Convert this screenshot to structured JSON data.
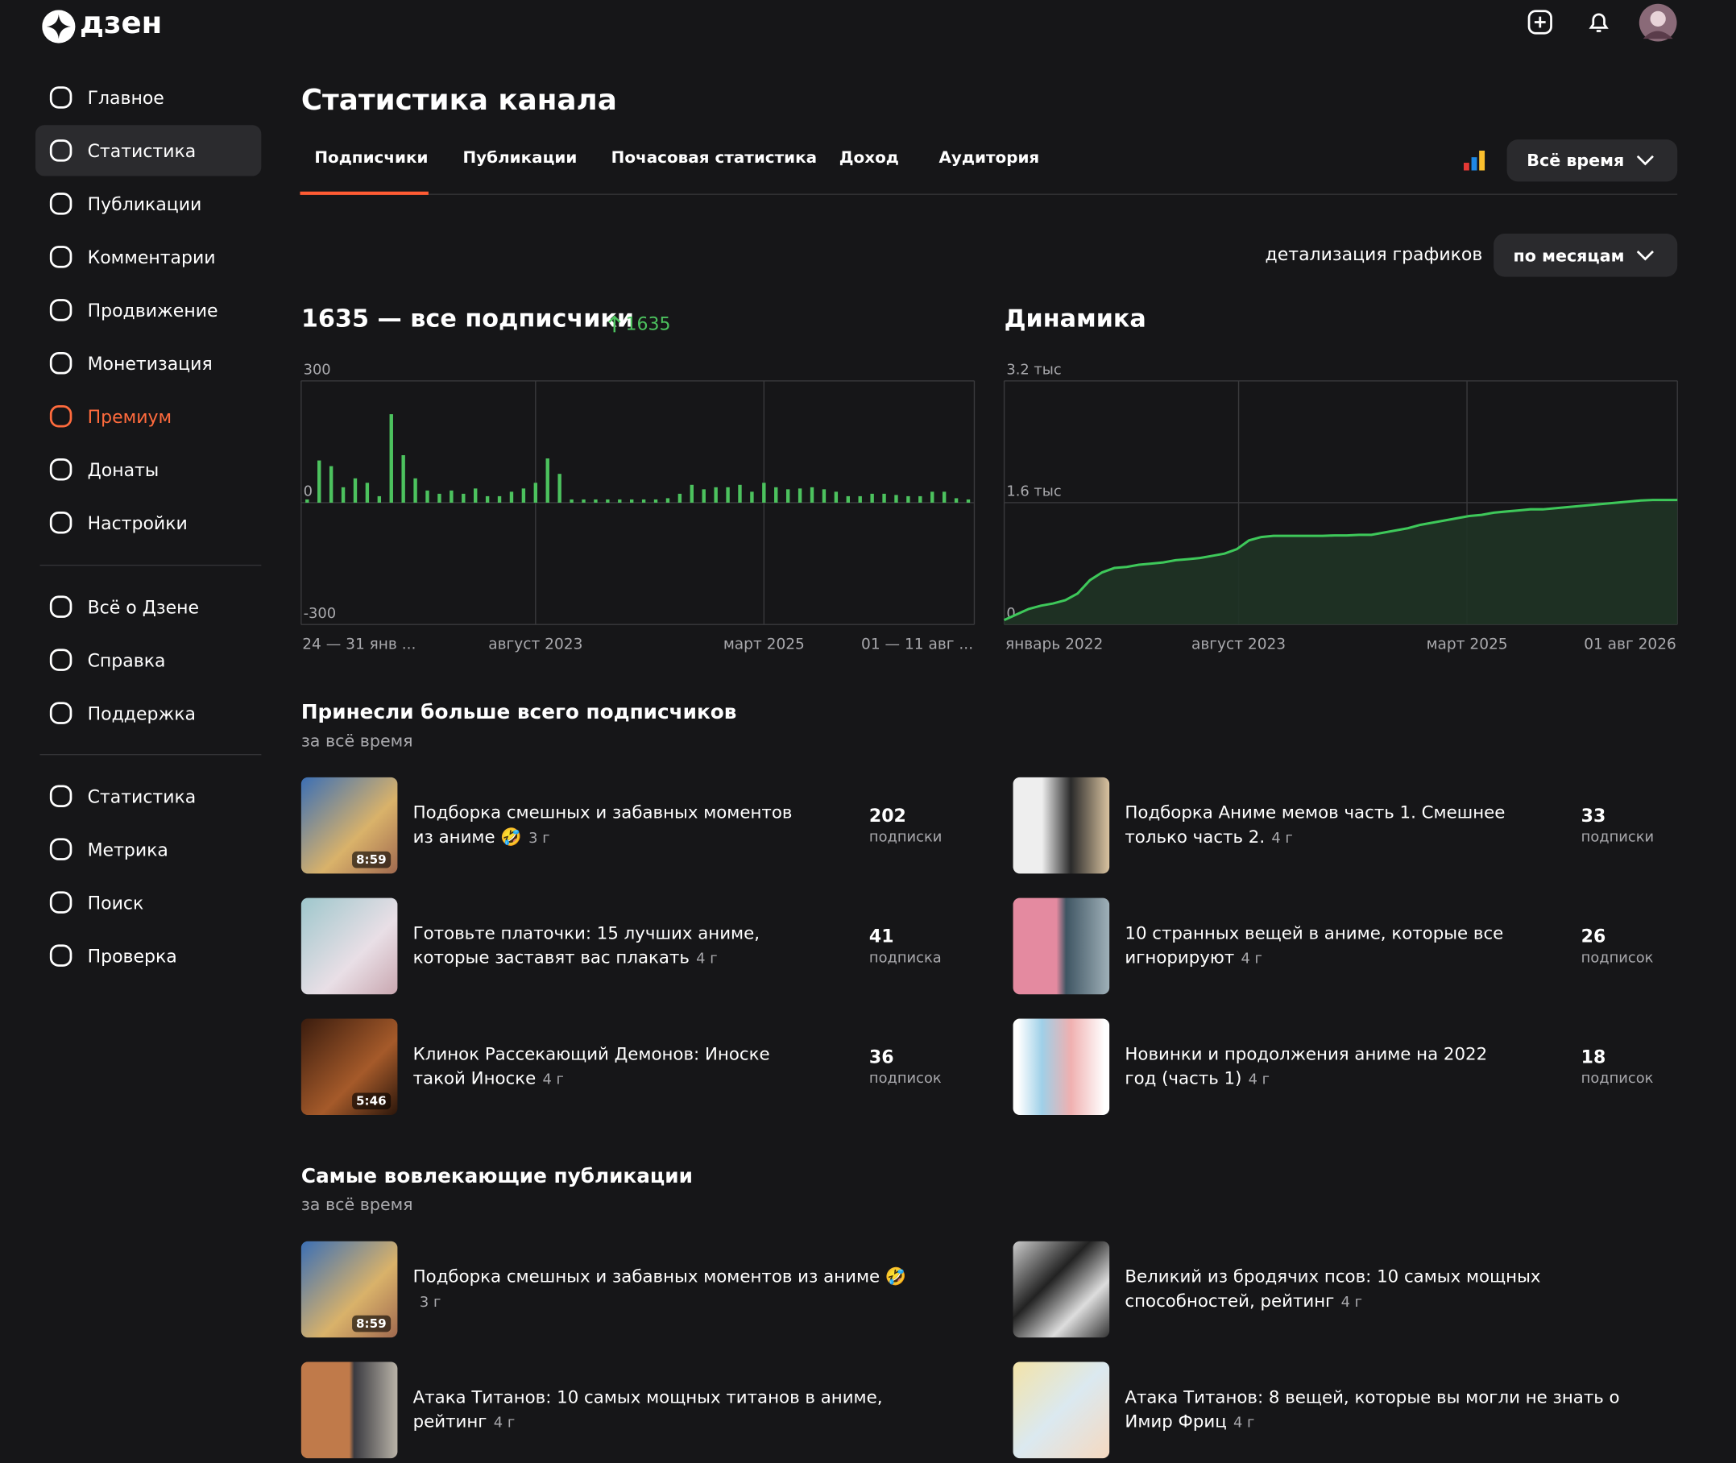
{
  "header": {
    "logo": "дзен"
  },
  "sidebar": {
    "main": [
      "Главное",
      "Статистика",
      "Публикации",
      "Комментарии",
      "Продвижение",
      "Монетизация",
      "Премиум",
      "Донаты",
      "Настройки"
    ],
    "help": [
      "Всё о Дзене",
      "Справка",
      "Поддержка"
    ],
    "tools": [
      "Статистика",
      "Метрика",
      "Поиск",
      "Проверка"
    ]
  },
  "page_title": "Статистика канала",
  "tabs": [
    "Подписчики",
    "Публикации",
    "Почасовая статистика",
    "Доход",
    "Аудитория"
  ],
  "period_button": "Всё время",
  "detail_label": "детализация графиков",
  "detail_button": "по месяцам",
  "chart_data": [
    {
      "type": "bar",
      "title": "1635 — все подписчики",
      "annotation": 1635,
      "color": "#4cc25e",
      "categories": [
        "24 — 31 янв ...",
        null,
        null,
        null,
        null,
        null,
        null,
        null,
        null,
        null,
        null,
        null,
        null,
        null,
        null,
        null,
        null,
        null,
        null,
        "август 2023",
        null,
        null,
        null,
        null,
        null,
        null,
        null,
        null,
        null,
        null,
        null,
        null,
        null,
        null,
        null,
        null,
        null,
        null,
        "март 2025",
        null,
        null,
        null,
        null,
        null,
        null,
        null,
        null,
        null,
        null,
        null,
        null,
        null,
        null,
        null,
        null,
        "01 — 11 авг ..."
      ],
      "values": [
        8,
        104,
        90,
        38,
        60,
        49,
        16,
        218,
        117,
        60,
        30,
        22,
        30,
        22,
        35,
        16,
        16,
        27,
        35,
        49,
        109,
        71,
        8,
        8,
        8,
        8,
        8,
        8,
        8,
        8,
        11,
        22,
        44,
        33,
        38,
        38,
        44,
        27,
        49,
        38,
        33,
        35,
        38,
        33,
        27,
        16,
        16,
        22,
        22,
        19,
        16,
        16,
        27,
        27,
        11,
        8
      ],
      "ylim": [
        -300,
        300
      ],
      "yticks": [
        300,
        0,
        -300
      ]
    },
    {
      "type": "line",
      "title": "Динамика",
      "color": "#3ec85a",
      "categories": [
        "январь 2022",
        null,
        null,
        null,
        null,
        null,
        null,
        null,
        null,
        null,
        null,
        null,
        null,
        null,
        null,
        null,
        null,
        null,
        null,
        "август 2023",
        null,
        null,
        null,
        null,
        null,
        null,
        null,
        null,
        null,
        null,
        null,
        null,
        null,
        null,
        null,
        null,
        null,
        null,
        "март 2025",
        null,
        null,
        null,
        null,
        null,
        null,
        null,
        null,
        null,
        null,
        null,
        null,
        null,
        null,
        null,
        null,
        "01 авг 2026"
      ],
      "values": [
        58,
        131,
        204,
        247,
        276,
        320,
        407,
        582,
        684,
        742,
        756,
        785,
        800,
        815,
        844,
        858,
        873,
        902,
        931,
        989,
        1105,
        1149,
        1164,
        1164,
        1164,
        1164,
        1164,
        1170,
        1170,
        1178,
        1178,
        1207,
        1236,
        1265,
        1309,
        1338,
        1367,
        1396,
        1425,
        1440,
        1469,
        1484,
        1498,
        1513,
        1513,
        1527,
        1542,
        1556,
        1571,
        1585,
        1600,
        1614,
        1629,
        1635,
        1635,
        1635
      ],
      "ylim": [
        0,
        3200
      ],
      "yticks": [
        {
          "value": 3200,
          "label": "3.2 тыс"
        },
        {
          "value": 1600,
          "label": "1.6 тыс"
        },
        0
      ]
    }
  ],
  "top_subscribers": {
    "title": "Принесли больше всего подписчиков",
    "subtitle": "за всё время",
    "items": [
      {
        "title": "Подборка смешных и забавных моментов из аниме 🤣",
        "age": "3 г",
        "count": 202,
        "unit": "подписки",
        "duration": "8:59"
      },
      {
        "title": "Подборка Аниме мемов часть 1. Смешнее только часть 2.",
        "age": "4 г",
        "count": 33,
        "unit": "подписки"
      },
      {
        "title": "Готовьте платочки: 15 лучших аниме, которые заставят вас плакать",
        "age": "4 г",
        "count": 41,
        "unit": "подписка"
      },
      {
        "title": "10 странных вещей в аниме, которые все игнорируют",
        "age": "4 г",
        "count": 26,
        "unit": "подписок"
      },
      {
        "title": "Клинок Рассекающий Демонов: Иноске такой Иноске",
        "age": "4 г",
        "count": 36,
        "unit": "подписок",
        "duration": "5:46"
      },
      {
        "title": "Новинки и продолжения аниме на 2022 год (часть 1)",
        "age": "4 г",
        "count": 18,
        "unit": "подписок"
      }
    ]
  },
  "engaging": {
    "title": "Самые вовлекающие публикации",
    "subtitle": "за всё время",
    "items": [
      {
        "title": "Подборка смешных и забавных моментов из аниме 🤣",
        "age": "3 г",
        "duration": "8:59"
      },
      {
        "title": "Великий из бродячих псов: 10 самых мощных способностей, рейтинг",
        "age": "4 г"
      },
      {
        "title": "Атака Титанов: 10 самых мощных титанов в аниме, рейтинг",
        "age": "4 г"
      },
      {
        "title": "Атака Титанов: 8 вещей, которые вы могли не знать о Имир Фриц",
        "age": "4 г"
      }
    ]
  }
}
